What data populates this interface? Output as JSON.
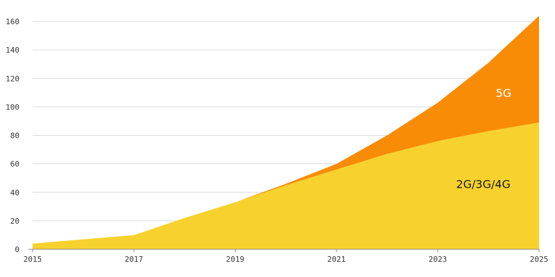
{
  "chart_data": {
    "type": "area",
    "stacked": true,
    "x": [
      2015,
      2016,
      2017,
      2018,
      2019,
      2020,
      2021,
      2022,
      2023,
      2024,
      2025
    ],
    "x_tick_labels": [
      "2015",
      "2017",
      "2019",
      "2021",
      "2023",
      "2025"
    ],
    "y_tick_labels": [
      "0",
      "20",
      "40",
      "60",
      "80",
      "100",
      "120",
      "140",
      "160"
    ],
    "ylim": [
      0,
      160
    ],
    "xlim": [
      2015,
      2025
    ],
    "grid": true,
    "series": [
      {
        "name": "2G/3G/4G",
        "color": "#F7D22F",
        "values": [
          4,
          7,
          10,
          22,
          33,
          45,
          56,
          67,
          76,
          83,
          89
        ]
      },
      {
        "name": "5G",
        "color": "#F98C07",
        "values": [
          0,
          0,
          0,
          0,
          0,
          1,
          4,
          13,
          27,
          48,
          75
        ]
      }
    ]
  }
}
